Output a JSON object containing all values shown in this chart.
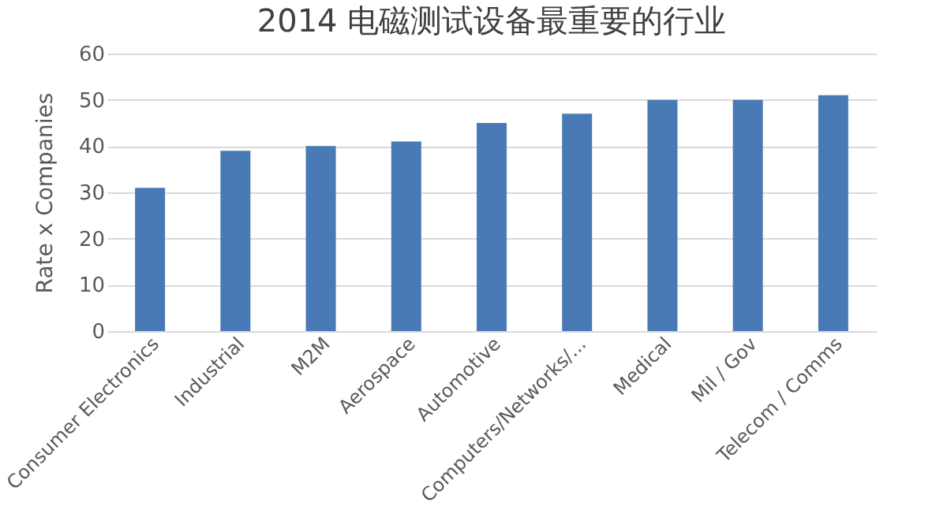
{
  "chart_data": {
    "type": "bar",
    "title": "2014 电磁测试设备最重要的行业",
    "ylabel": "Rate x Companies",
    "categories": [
      "Consumer Electronics",
      "Industrial",
      "M2M",
      "Aerospace",
      "Automotive",
      "Computers/Networks/...",
      "Medical",
      "Mil / Gov",
      "Telecom / Comms"
    ],
    "values": [
      31,
      39,
      40,
      41,
      45,
      47,
      50,
      50,
      51
    ],
    "color": "#4a7ab5",
    "ylim": [
      0,
      60
    ],
    "yticks": [
      0,
      10,
      20,
      30,
      40,
      50,
      60
    ],
    "grid": "y"
  }
}
